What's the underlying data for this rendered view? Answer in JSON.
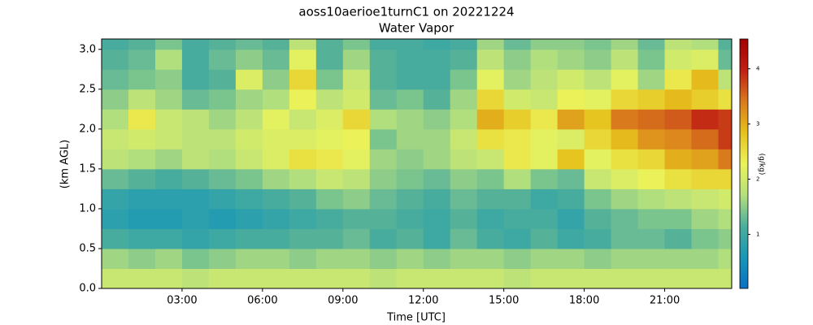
{
  "chart_data": {
    "type": "heatmap",
    "title": "aoss10aerioe1turnC1 on 20221224",
    "subtitle": "Water Vapor",
    "x_label": "Time [UTC]",
    "y_label": "(km AGL)",
    "colorbar_label": "(g/kg)",
    "x_edges": [
      0,
      1,
      2,
      3,
      4,
      5,
      6,
      7,
      8,
      9,
      10,
      11,
      12,
      13,
      14,
      15,
      16,
      17,
      18,
      19,
      20,
      21,
      22,
      23,
      23.5
    ],
    "y_edges": [
      0,
      0.25,
      0.5,
      0.75,
      1.0,
      1.25,
      1.5,
      1.75,
      2.0,
      2.25,
      2.5,
      2.75,
      3.0,
      3.13
    ],
    "z": [
      [
        1.9,
        1.9,
        1.9,
        1.8,
        1.9,
        1.9,
        1.9,
        1.9,
        1.9,
        1.9,
        1.8,
        1.9,
        1.9,
        1.9,
        1.9,
        1.8,
        1.9,
        1.9,
        1.9,
        1.9,
        1.9,
        1.9,
        1.9,
        1.9
      ],
      [
        1.6,
        1.5,
        1.6,
        1.4,
        1.5,
        1.6,
        1.6,
        1.5,
        1.6,
        1.6,
        1.5,
        1.6,
        1.5,
        1.6,
        1.6,
        1.5,
        1.6,
        1.6,
        1.5,
        1.6,
        1.6,
        1.6,
        1.6,
        1.7
      ],
      [
        1.1,
        1.0,
        1.0,
        0.9,
        1.0,
        1.1,
        1.1,
        1.2,
        1.2,
        1.3,
        1.1,
        1.2,
        1.0,
        1.3,
        1.1,
        1.0,
        1.2,
        1.0,
        1.1,
        1.3,
        1.3,
        1.2,
        1.4,
        1.5
      ],
      [
        0.8,
        0.7,
        0.7,
        0.8,
        0.7,
        0.8,
        0.9,
        1.0,
        1.1,
        1.2,
        1.2,
        1.1,
        1.0,
        1.2,
        1.0,
        1.1,
        1.1,
        0.9,
        1.2,
        1.3,
        1.4,
        1.4,
        1.6,
        1.7
      ],
      [
        0.9,
        0.8,
        0.8,
        0.8,
        0.9,
        1.0,
        1.1,
        1.2,
        1.4,
        1.5,
        1.3,
        1.2,
        1.1,
        1.3,
        1.2,
        1.2,
        1.0,
        1.1,
        1.4,
        1.6,
        1.7,
        1.8,
        1.9,
        2.0
      ],
      [
        1.3,
        1.2,
        1.1,
        1.2,
        1.3,
        1.4,
        1.6,
        1.7,
        1.9,
        1.8,
        1.5,
        1.4,
        1.3,
        1.5,
        1.4,
        1.7,
        1.4,
        1.3,
        1.9,
        2.1,
        2.3,
        2.5,
        2.6,
        2.6
      ],
      [
        1.8,
        1.7,
        1.6,
        1.8,
        1.7,
        1.9,
        2.1,
        2.5,
        2.4,
        2.2,
        1.6,
        1.5,
        1.6,
        1.8,
        1.9,
        2.4,
        2.2,
        2.8,
        2.2,
        2.5,
        2.6,
        3.0,
        3.1,
        3.4
      ],
      [
        1.9,
        2.0,
        1.9,
        1.8,
        1.8,
        2.0,
        2.1,
        2.1,
        2.2,
        2.3,
        1.4,
        1.6,
        1.6,
        1.9,
        2.5,
        2.4,
        2.2,
        2.1,
        2.6,
        2.9,
        3.2,
        3.3,
        3.5,
        3.8
      ],
      [
        1.7,
        2.4,
        1.9,
        1.8,
        1.6,
        1.8,
        2.2,
        1.9,
        2.1,
        2.6,
        1.7,
        1.6,
        1.5,
        1.7,
        3.0,
        2.7,
        2.4,
        3.1,
        2.8,
        3.4,
        3.5,
        3.6,
        3.9,
        3.8
      ],
      [
        1.5,
        1.8,
        1.6,
        1.3,
        1.4,
        1.6,
        1.7,
        2.3,
        1.8,
        2.0,
        1.3,
        1.4,
        1.2,
        1.6,
        2.6,
        2.0,
        1.9,
        2.3,
        2.2,
        2.6,
        2.7,
        2.9,
        2.7,
        2.5
      ],
      [
        1.3,
        1.4,
        1.5,
        1.1,
        1.2,
        2.1,
        1.5,
        2.6,
        1.4,
        1.9,
        1.2,
        1.1,
        1.1,
        1.4,
        2.2,
        1.6,
        1.8,
        2.0,
        1.8,
        2.2,
        1.6,
        2.4,
        2.9,
        1.8
      ],
      [
        1.2,
        1.3,
        1.7,
        1.1,
        1.3,
        1.5,
        1.3,
        2.2,
        1.2,
        1.6,
        1.2,
        1.1,
        1.1,
        1.2,
        1.8,
        1.5,
        1.7,
        1.6,
        1.5,
        1.8,
        1.4,
        2.0,
        2.1,
        1.3
      ],
      [
        1.1,
        1.2,
        1.4,
        1.1,
        1.2,
        1.3,
        1.2,
        1.8,
        1.2,
        1.4,
        1.1,
        1.1,
        1.0,
        1.1,
        1.6,
        1.3,
        1.5,
        1.5,
        1.4,
        1.6,
        1.3,
        1.8,
        1.7,
        1.2
      ]
    ],
    "xlim": [
      0,
      23.5
    ],
    "ylim": [
      0,
      3.13
    ],
    "xticks": [
      {
        "value": 3,
        "label": "03:00"
      },
      {
        "value": 6,
        "label": "06:00"
      },
      {
        "value": 9,
        "label": "09:00"
      },
      {
        "value": 12,
        "label": "12:00"
      },
      {
        "value": 15,
        "label": "15:00"
      },
      {
        "value": 18,
        "label": "18:00"
      },
      {
        "value": 21,
        "label": "21:00"
      }
    ],
    "yticks": [
      {
        "value": 0,
        "label": "0.0"
      },
      0.5,
      {
        "value": 1,
        "label": "1.0"
      },
      1.5,
      {
        "value": 2,
        "label": "2.0"
      },
      2.5,
      {
        "value": 3,
        "label": "3.0"
      }
    ],
    "clim": [
      0.02,
      4.54
    ],
    "cticks": [
      1,
      2,
      3,
      4
    ],
    "colormap": [
      "#0b6fc2",
      "#1897b6",
      "#4cae9c",
      "#b5e07d",
      "#ebf35a",
      "#e6c11c",
      "#d97a1d",
      "#c11f14",
      "#a30000"
    ]
  }
}
